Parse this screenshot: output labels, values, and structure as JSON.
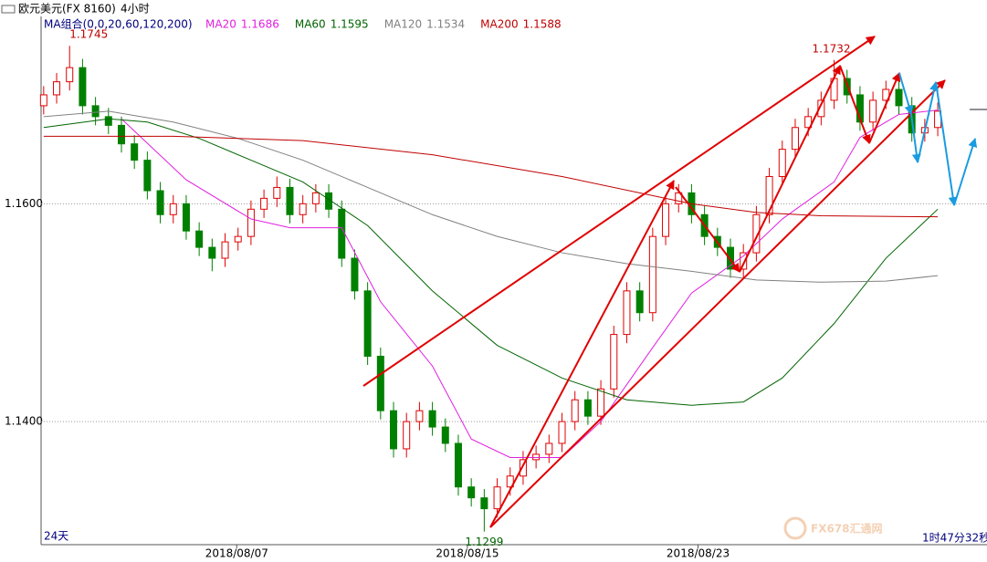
{
  "chart_data": {
    "type": "candlestick",
    "title": "欧元美元(FX 8160)",
    "period": "4小时",
    "ma_title": "MA组合(0,0,20,60,120,200)",
    "range_label": "24天",
    "timer": "1时47分32秒",
    "watermark": "FX678汇通网",
    "up_color": "#e00000",
    "down_color": "#008000",
    "xlim": [
      -0.2,
      72.8
    ],
    "ylim": [
      1.1287,
      1.1772
    ],
    "yticks": [
      {
        "value": 1.14,
        "label": "1.1400"
      },
      {
        "value": 1.16,
        "label": "1.1600"
      }
    ],
    "xticks": [
      {
        "value": 14.9,
        "label": "2018/08/07"
      },
      {
        "value": 32.7,
        "label": "2018/08/15"
      },
      {
        "value": 50.5,
        "label": "2018/08/23"
      }
    ],
    "grid": true,
    "candles": [
      [
        1.169,
        1.1708,
        1.1682,
        1.17
      ],
      [
        1.17,
        1.172,
        1.1692,
        1.1712
      ],
      [
        1.1712,
        1.1745,
        1.1704,
        1.1725
      ],
      [
        1.1725,
        1.1733,
        1.1682,
        1.169
      ],
      [
        1.169,
        1.1698,
        1.1672,
        1.168
      ],
      [
        1.168,
        1.1688,
        1.1664,
        1.1672
      ],
      [
        1.1672,
        1.168,
        1.1647,
        1.1655
      ],
      [
        1.1655,
        1.1663,
        1.1632,
        1.164
      ],
      [
        1.164,
        1.1648,
        1.1604,
        1.1612
      ],
      [
        1.1612,
        1.162,
        1.1582,
        1.159
      ],
      [
        1.159,
        1.1608,
        1.1582,
        1.16
      ],
      [
        1.16,
        1.1608,
        1.1567,
        1.1575
      ],
      [
        1.1575,
        1.1583,
        1.1552,
        1.156
      ],
      [
        1.156,
        1.1568,
        1.1538,
        1.155
      ],
      [
        1.155,
        1.1573,
        1.1542,
        1.1565
      ],
      [
        1.1565,
        1.1578,
        1.1557,
        1.157
      ],
      [
        1.157,
        1.1603,
        1.1562,
        1.1595
      ],
      [
        1.1595,
        1.1613,
        1.1587,
        1.1605
      ],
      [
        1.1605,
        1.1625,
        1.1597,
        1.1615
      ],
      [
        1.1615,
        1.1623,
        1.1582,
        1.159
      ],
      [
        1.159,
        1.1608,
        1.1582,
        1.16
      ],
      [
        1.16,
        1.1618,
        1.1592,
        1.161
      ],
      [
        1.161,
        1.1618,
        1.1587,
        1.1595
      ],
      [
        1.1595,
        1.1603,
        1.1542,
        1.155
      ],
      [
        1.155,
        1.1558,
        1.1512,
        1.152
      ],
      [
        1.152,
        1.1528,
        1.1452,
        1.146
      ],
      [
        1.146,
        1.1468,
        1.1402,
        1.141
      ],
      [
        1.141,
        1.1418,
        1.1367,
        1.1375
      ],
      [
        1.1375,
        1.1408,
        1.1367,
        1.14
      ],
      [
        1.14,
        1.1418,
        1.1392,
        1.141
      ],
      [
        1.141,
        1.1418,
        1.1387,
        1.1395
      ],
      [
        1.1395,
        1.1403,
        1.1372,
        1.138
      ],
      [
        1.138,
        1.1388,
        1.1332,
        1.134
      ],
      [
        1.134,
        1.1348,
        1.1322,
        1.133
      ],
      [
        1.133,
        1.1338,
        1.1299,
        1.132
      ],
      [
        1.132,
        1.1348,
        1.1312,
        1.134
      ],
      [
        1.134,
        1.1358,
        1.1332,
        1.135
      ],
      [
        1.135,
        1.1373,
        1.1342,
        1.1365
      ],
      [
        1.1365,
        1.1378,
        1.1357,
        1.137
      ],
      [
        1.137,
        1.1388,
        1.1362,
        1.138
      ],
      [
        1.138,
        1.1408,
        1.1372,
        1.14
      ],
      [
        1.14,
        1.1428,
        1.1392,
        1.142
      ],
      [
        1.142,
        1.1428,
        1.1397,
        1.1405
      ],
      [
        1.1405,
        1.1438,
        1.1397,
        1.143
      ],
      [
        1.143,
        1.1488,
        1.1422,
        1.148
      ],
      [
        1.148,
        1.1528,
        1.1472,
        1.152
      ],
      [
        1.152,
        1.1528,
        1.1492,
        1.15
      ],
      [
        1.15,
        1.1578,
        1.1492,
        1.157
      ],
      [
        1.157,
        1.1608,
        1.1562,
        1.16
      ],
      [
        1.16,
        1.1618,
        1.1592,
        1.161
      ],
      [
        1.161,
        1.1618,
        1.1582,
        1.159
      ],
      [
        1.159,
        1.1598,
        1.1562,
        1.157
      ],
      [
        1.157,
        1.1578,
        1.1552,
        1.156
      ],
      [
        1.156,
        1.1568,
        1.1532,
        1.154
      ],
      [
        1.154,
        1.1563,
        1.1532,
        1.1555
      ],
      [
        1.1555,
        1.1598,
        1.1547,
        1.159
      ],
      [
        1.159,
        1.1633,
        1.1582,
        1.1625
      ],
      [
        1.1625,
        1.1658,
        1.1617,
        1.165
      ],
      [
        1.165,
        1.1678,
        1.1642,
        1.167
      ],
      [
        1.167,
        1.1688,
        1.1662,
        1.168
      ],
      [
        1.168,
        1.1703,
        1.1672,
        1.1695
      ],
      [
        1.1695,
        1.1732,
        1.1687,
        1.1715
      ],
      [
        1.1715,
        1.1723,
        1.1692,
        1.17
      ],
      [
        1.17,
        1.1708,
        1.1667,
        1.1675
      ],
      [
        1.1675,
        1.1703,
        1.1667,
        1.1695
      ],
      [
        1.1695,
        1.1713,
        1.1687,
        1.1705
      ],
      [
        1.1705,
        1.1713,
        1.1682,
        1.169
      ],
      [
        1.169,
        1.1698,
        1.1657,
        1.1665
      ],
      [
        1.1665,
        1.1678,
        1.1657,
        1.167
      ],
      [
        1.167,
        1.1693,
        1.1662,
        1.1685
      ]
    ],
    "series": [
      {
        "name": "MA20",
        "current": 1.1686,
        "color": "#e020e0",
        "x": [
          6,
          11,
          16,
          19,
          23,
          26,
          30,
          33,
          36,
          40,
          43,
          47,
          50,
          54,
          57,
          61,
          63,
          66,
          69
        ],
        "values": [
          1.1678,
          1.1622,
          1.1586,
          1.1578,
          1.1578,
          1.151,
          1.1451,
          1.1384,
          1.1367,
          1.1367,
          1.14,
          1.1468,
          1.1518,
          1.1552,
          1.1586,
          1.162,
          1.1661,
          1.1682,
          1.1686
        ]
      },
      {
        "name": "MA60",
        "current": 1.1595,
        "color": "#006400",
        "x": [
          0,
          5,
          8,
          12,
          16,
          20,
          25,
          30,
          35,
          40,
          45,
          50,
          54,
          57,
          61,
          65,
          69
        ],
        "values": [
          1.167,
          1.1678,
          1.1675,
          1.166,
          1.164,
          1.162,
          1.158,
          1.152,
          1.147,
          1.144,
          1.142,
          1.1415,
          1.1418,
          1.144,
          1.149,
          1.155,
          1.1595
        ]
      },
      {
        "name": "MA120",
        "current": 1.1534,
        "color": "#808080",
        "x": [
          0,
          5,
          10,
          15,
          20,
          25,
          30,
          35,
          40,
          45,
          50,
          55,
          60,
          65,
          69
        ],
        "values": [
          1.168,
          1.1685,
          1.1675,
          1.166,
          1.164,
          1.1615,
          1.159,
          1.157,
          1.1555,
          1.1545,
          1.1538,
          1.153,
          1.1528,
          1.1529,
          1.1534
        ]
      },
      {
        "name": "MA200",
        "current": 1.1588,
        "color": "#c00000",
        "x": [
          0,
          10,
          20,
          30,
          40,
          50,
          55,
          60,
          69
        ],
        "values": [
          1.1662,
          1.1662,
          1.1658,
          1.1645,
          1.1625,
          1.16,
          1.1592,
          1.1589,
          1.1588
        ]
      }
    ],
    "annotations": [
      {
        "text": "1.1745",
        "x": 2,
        "y": 1.1745
      },
      {
        "text": "1.1732",
        "x": 61,
        "y": 1.1732
      },
      {
        "text": "1.1299",
        "x": 34,
        "y": 1.1299
      }
    ]
  }
}
